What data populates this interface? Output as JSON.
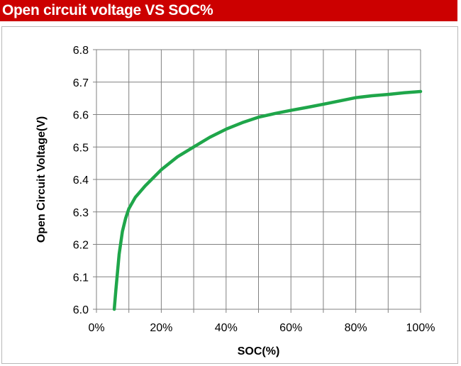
{
  "header": {
    "title": "Open circuit voltage VS SOC%"
  },
  "chart_data": {
    "type": "line",
    "title": "Open circuit voltage VS SOC%",
    "xlabel": "SOC(%)",
    "ylabel": "Open Circuit Voltage(V)",
    "xlim": [
      0,
      100
    ],
    "ylim": [
      6.0,
      6.8
    ],
    "x_ticks": [
      0,
      10,
      20,
      30,
      40,
      50,
      60,
      70,
      80,
      90,
      100
    ],
    "x_tick_labels": [
      "0%",
      "20%",
      "40%",
      "60%",
      "80%",
      "100%"
    ],
    "x_tick_label_values": [
      0,
      20,
      40,
      60,
      80,
      100
    ],
    "y_tick_labels": [
      "6.0",
      "6.1",
      "6.2",
      "6.3",
      "6.4",
      "6.5",
      "6.6",
      "6.7",
      "6.8"
    ],
    "y_tick_values": [
      6.0,
      6.1,
      6.2,
      6.3,
      6.4,
      6.5,
      6.6,
      6.7,
      6.8
    ],
    "grid": true,
    "series": [
      {
        "color": "#1fa64a",
        "x": [
          5.5,
          6,
          7,
          8,
          9,
          10,
          12,
          15,
          20,
          25,
          30,
          35,
          40,
          45,
          50,
          55,
          60,
          65,
          70,
          75,
          80,
          85,
          90,
          95,
          100
        ],
        "y": [
          6.0,
          6.06,
          6.17,
          6.24,
          6.28,
          6.31,
          6.345,
          6.38,
          6.43,
          6.47,
          6.5,
          6.53,
          6.555,
          6.575,
          6.592,
          6.603,
          6.613,
          6.622,
          6.632,
          6.642,
          6.652,
          6.658,
          6.662,
          6.667,
          6.671
        ]
      }
    ]
  }
}
